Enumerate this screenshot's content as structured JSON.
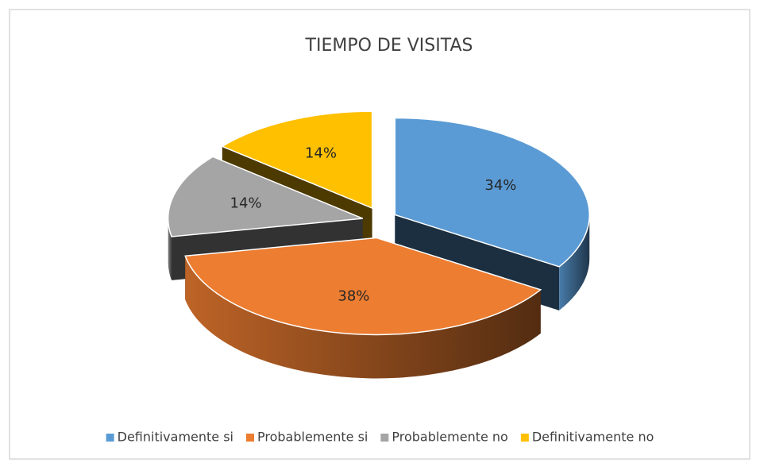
{
  "chart_data": {
    "type": "pie3d",
    "title": "TIEMPO DE VISITAS",
    "categories": [
      "Definitivamente si",
      "Probablemente si",
      "Probablemente no",
      "Definitivamente no"
    ],
    "values": [
      34,
      38,
      14,
      14
    ],
    "value_labels": [
      "34%",
      "38%",
      "14%",
      "14%"
    ],
    "colors": [
      "#5b9bd5",
      "#ed7d31",
      "#a5a5a5",
      "#ffc000"
    ],
    "legend": "bottom"
  }
}
